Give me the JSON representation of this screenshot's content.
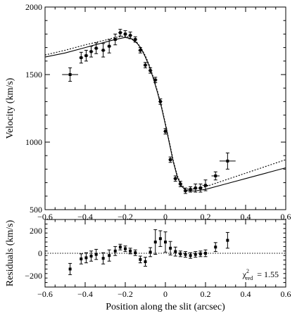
{
  "chart_data": [
    {
      "type": "scatter",
      "panel": "top",
      "title": "",
      "xlabel": "Position along the slit (arcsec)",
      "ylabel": "Velocity (km/s)",
      "xlim": [
        -0.6,
        0.6
      ],
      "ylim": [
        500,
        2000
      ],
      "x_ticks": [
        -0.6,
        -0.4,
        -0.2,
        0,
        0.2,
        0.4,
        0.6
      ],
      "x_tick_labels": [
        "−0.6",
        "−0.4",
        "−0.2",
        "0",
        "0.2",
        "0.4",
        "0.6"
      ],
      "y_ticks": [
        500,
        1000,
        1500,
        2000
      ],
      "y_tick_labels": [
        "500",
        "1000",
        "1500",
        "2000"
      ],
      "grid": false,
      "series": [
        {
          "style": "points",
          "points": [
            {
              "x": -0.475,
              "y": 1500,
              "xerr": 0.04,
              "yerr": 50
            },
            {
              "x": -0.42,
              "y": 1625,
              "xerr": 0.01,
              "yerr": 40
            },
            {
              "x": -0.395,
              "y": 1640,
              "xerr": 0.01,
              "yerr": 40
            },
            {
              "x": -0.37,
              "y": 1670,
              "xerr": 0.01,
              "yerr": 40
            },
            {
              "x": -0.345,
              "y": 1695,
              "xerr": 0.01,
              "yerr": 40
            },
            {
              "x": -0.31,
              "y": 1680,
              "xerr": 0.01,
              "yerr": 50
            },
            {
              "x": -0.28,
              "y": 1710,
              "xerr": 0.01,
              "yerr": 50
            },
            {
              "x": -0.25,
              "y": 1760,
              "xerr": 0.01,
              "yerr": 40
            },
            {
              "x": -0.225,
              "y": 1810,
              "xerr": 0.01,
              "yerr": 25
            },
            {
              "x": -0.2,
              "y": 1800,
              "xerr": 0.01,
              "yerr": 25
            },
            {
              "x": -0.175,
              "y": 1790,
              "xerr": 0.01,
              "yerr": 25
            },
            {
              "x": -0.15,
              "y": 1760,
              "xerr": 0.01,
              "yerr": 20
            },
            {
              "x": -0.125,
              "y": 1680,
              "xerr": 0.01,
              "yerr": 20
            },
            {
              "x": -0.1,
              "y": 1570,
              "xerr": 0.01,
              "yerr": 20
            },
            {
              "x": -0.075,
              "y": 1530,
              "xerr": 0.01,
              "yerr": 20
            },
            {
              "x": -0.05,
              "y": 1460,
              "xerr": 0.01,
              "yerr": 20
            },
            {
              "x": -0.025,
              "y": 1300,
              "xerr": 0.01,
              "yerr": 20
            },
            {
              "x": 0.0,
              "y": 1080,
              "xerr": 0.01,
              "yerr": 20
            },
            {
              "x": 0.025,
              "y": 870,
              "xerr": 0.01,
              "yerr": 20
            },
            {
              "x": 0.05,
              "y": 730,
              "xerr": 0.01,
              "yerr": 20
            },
            {
              "x": 0.075,
              "y": 690,
              "xerr": 0.01,
              "yerr": 20
            },
            {
              "x": 0.1,
              "y": 640,
              "xerr": 0.01,
              "yerr": 20
            },
            {
              "x": 0.125,
              "y": 650,
              "xerr": 0.01,
              "yerr": 20
            },
            {
              "x": 0.15,
              "y": 660,
              "xerr": 0.01,
              "yerr": 30
            },
            {
              "x": 0.175,
              "y": 660,
              "xerr": 0.01,
              "yerr": 30
            },
            {
              "x": 0.2,
              "y": 680,
              "xerr": 0.015,
              "yerr": 40
            },
            {
              "x": 0.25,
              "y": 750,
              "xerr": 0.02,
              "yerr": 30
            },
            {
              "x": 0.31,
              "y": 860,
              "xerr": 0.04,
              "yerr": 60
            }
          ]
        },
        {
          "style": "solid",
          "x": [
            -0.6,
            -0.5,
            -0.4,
            -0.3,
            -0.25,
            -0.2,
            -0.17,
            -0.14,
            -0.12,
            -0.1,
            -0.08,
            -0.06,
            -0.04,
            -0.02,
            0.0,
            0.02,
            0.04,
            0.06,
            0.08,
            0.1,
            0.12,
            0.15,
            0.2,
            0.3,
            0.4,
            0.5,
            0.6
          ],
          "y": [
            1630,
            1660,
            1700,
            1740,
            1760,
            1775,
            1765,
            1730,
            1690,
            1630,
            1560,
            1470,
            1370,
            1260,
            1130,
            990,
            850,
            740,
            675,
            645,
            638,
            640,
            650,
            690,
            730,
            770,
            810
          ]
        },
        {
          "style": "dashed",
          "x": [
            -0.6,
            -0.5,
            -0.4,
            -0.3,
            -0.25,
            -0.2,
            -0.17,
            -0.14,
            -0.12,
            -0.1,
            -0.08,
            -0.06,
            -0.04,
            -0.02,
            0.0,
            0.02,
            0.04,
            0.06,
            0.08,
            0.1,
            0.12,
            0.15,
            0.2,
            0.3,
            0.4,
            0.5,
            0.6
          ],
          "y": [
            1645,
            1680,
            1720,
            1755,
            1775,
            1785,
            1770,
            1735,
            1695,
            1640,
            1570,
            1480,
            1380,
            1270,
            1140,
            1000,
            860,
            750,
            685,
            655,
            650,
            655,
            670,
            720,
            770,
            820,
            870
          ]
        }
      ]
    },
    {
      "type": "scatter",
      "panel": "bottom",
      "title": "",
      "xlabel": "Position along the slit (arcsec)",
      "ylabel": "Residuals (km/s)",
      "xlim": [
        -0.6,
        0.6
      ],
      "ylim": [
        -300,
        300
      ],
      "x_ticks": [
        -0.6,
        -0.4,
        -0.2,
        0,
        0.2,
        0.4,
        0.6
      ],
      "x_tick_labels": [
        "−0.6",
        "−0.4",
        "−0.2",
        "0",
        "0.2",
        "0.4",
        "0.6"
      ],
      "y_ticks": [
        -200,
        0,
        200
      ],
      "y_tick_labels": [
        "−200",
        "0",
        "200"
      ],
      "zero_line": "dotted",
      "grid": false,
      "annotation": {
        "base": "χ",
        "superscript": "2",
        "subscript": "red",
        "text": "= 1.55",
        "placement": "bottom-right"
      },
      "points": [
        {
          "x": -0.475,
          "y": -140,
          "xerr": 0.0,
          "yerr": 50
        },
        {
          "x": -0.42,
          "y": -50,
          "yerr": 45
        },
        {
          "x": -0.395,
          "y": -40,
          "yerr": 45
        },
        {
          "x": -0.37,
          "y": -25,
          "yerr": 45
        },
        {
          "x": -0.345,
          "y": -10,
          "yerr": 45
        },
        {
          "x": -0.31,
          "y": -45,
          "yerr": 50
        },
        {
          "x": -0.28,
          "y": -20,
          "yerr": 50
        },
        {
          "x": -0.25,
          "y": 20,
          "yerr": 40
        },
        {
          "x": -0.225,
          "y": 55,
          "yerr": 25
        },
        {
          "x": -0.2,
          "y": 40,
          "yerr": 25
        },
        {
          "x": -0.175,
          "y": 20,
          "yerr": 25
        },
        {
          "x": -0.15,
          "y": 5,
          "yerr": 25
        },
        {
          "x": -0.125,
          "y": -55,
          "yerr": 30
        },
        {
          "x": -0.1,
          "y": -75,
          "yerr": 40
        },
        {
          "x": -0.075,
          "y": 10,
          "yerr": 40
        },
        {
          "x": -0.05,
          "y": 100,
          "yerr": 110
        },
        {
          "x": -0.025,
          "y": 130,
          "yerr": 70
        },
        {
          "x": 0.0,
          "y": 100,
          "yerr": 90
        },
        {
          "x": 0.025,
          "y": 45,
          "yerr": 60
        },
        {
          "x": 0.05,
          "y": 15,
          "yerr": 40
        },
        {
          "x": 0.075,
          "y": -5,
          "yerr": 25
        },
        {
          "x": 0.1,
          "y": -10,
          "yerr": 25
        },
        {
          "x": 0.125,
          "y": -20,
          "yerr": 25
        },
        {
          "x": 0.15,
          "y": -10,
          "yerr": 25
        },
        {
          "x": 0.175,
          "y": -5,
          "yerr": 25
        },
        {
          "x": 0.2,
          "y": 0,
          "yerr": 30
        },
        {
          "x": 0.25,
          "y": 55,
          "yerr": 40
        },
        {
          "x": 0.31,
          "y": 115,
          "yerr": 70
        }
      ]
    }
  ]
}
